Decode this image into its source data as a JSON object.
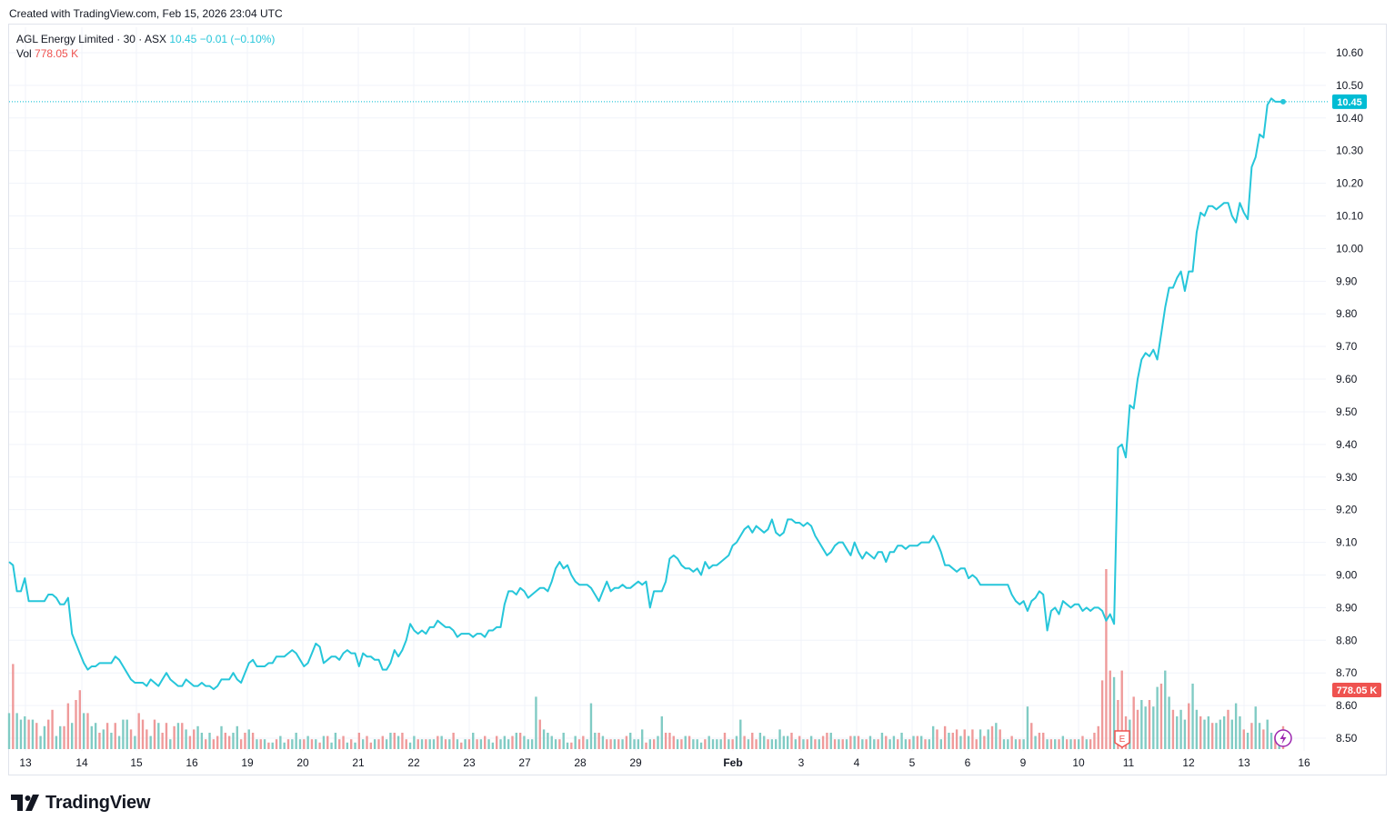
{
  "created_text": "Created with TradingView.com, Feb 15, 2026 23:04 UTC",
  "legend": {
    "symbol": "AGL Energy Limited · 30 · ASX",
    "last": "10.45",
    "change": "−0.01",
    "change_pct": "(−0.10%)",
    "vol_label": "Vol",
    "vol_value": "778.05 K"
  },
  "logo_text": "TradingView",
  "colors": {
    "line": "#26c6da",
    "vol_up": "#80cbc4",
    "vol_down": "#ef9a9a",
    "price_tag": "#00bcd4",
    "vol_tag": "#ef5350",
    "grid": "#f0f3fa"
  },
  "chart_data": {
    "type": "line",
    "x_tick_labels": [
      "13",
      "14",
      "15",
      "16",
      "19",
      "20",
      "21",
      "22",
      "23",
      "27",
      "28",
      "29",
      "Feb",
      "3",
      "4",
      "5",
      "6",
      "9",
      "10",
      "11",
      "12",
      "13",
      "16"
    ],
    "y_tick_labels": [
      "10.60",
      "10.50",
      "10.40",
      "10.30",
      "10.20",
      "10.10",
      "10.00",
      "9.90",
      "9.80",
      "9.70",
      "9.60",
      "9.50",
      "9.40",
      "9.30",
      "9.20",
      "9.10",
      "9.00",
      "8.90",
      "8.80",
      "8.70",
      "8.60",
      "8.50"
    ],
    "ylim": [
      8.47,
      10.65
    ],
    "last_price_label": "10.45",
    "last_volume_label": "778.05 K",
    "earnings_marker": "E",
    "series": [
      {
        "values": [
          9.04,
          9.03,
          8.95,
          8.95,
          8.99,
          8.92,
          8.92,
          8.92,
          8.92,
          8.92,
          8.94,
          8.94,
          8.93,
          8.91,
          8.91,
          8.93,
          8.82,
          8.79,
          8.76,
          8.73,
          8.71,
          8.72,
          8.72,
          8.73,
          8.73,
          8.73,
          8.73,
          8.75,
          8.74,
          8.72,
          8.7,
          8.68,
          8.67,
          8.67,
          8.67,
          8.66,
          8.68,
          8.67,
          8.66,
          8.68,
          8.7,
          8.68,
          8.67,
          8.66,
          8.66,
          8.68,
          8.67,
          8.66,
          8.66,
          8.67,
          8.66,
          8.66,
          8.65,
          8.66,
          8.68,
          8.68,
          8.68,
          8.7,
          8.68,
          8.67,
          8.7,
          8.73,
          8.74,
          8.72,
          8.72,
          8.72,
          8.73,
          8.73,
          8.75,
          8.75,
          8.75,
          8.76,
          8.77,
          8.76,
          8.74,
          8.72,
          8.73,
          8.76,
          8.79,
          8.78,
          8.73,
          8.74,
          8.75,
          8.75,
          8.74,
          8.76,
          8.77,
          8.76,
          8.76,
          8.72,
          8.76,
          8.75,
          8.75,
          8.74,
          8.74,
          8.71,
          8.71,
          8.73,
          8.77,
          8.75,
          8.77,
          8.8,
          8.85,
          8.83,
          8.82,
          8.83,
          8.82,
          8.84,
          8.84,
          8.86,
          8.85,
          8.84,
          8.84,
          8.83,
          8.81,
          8.82,
          8.82,
          8.82,
          8.81,
          8.82,
          8.82,
          8.81,
          8.83,
          8.83,
          8.84,
          8.84,
          8.91,
          8.95,
          8.95,
          8.94,
          8.96,
          8.95,
          8.93,
          8.94,
          8.95,
          8.96,
          8.96,
          8.95,
          8.98,
          9.02,
          9.04,
          9.02,
          9.03,
          9.0,
          8.98,
          8.97,
          8.97,
          8.97,
          8.96,
          8.94,
          8.92,
          8.95,
          8.98,
          8.95,
          8.96,
          8.96,
          8.97,
          8.96,
          8.96,
          8.97,
          8.98,
          8.97,
          8.98,
          8.9,
          8.95,
          8.95,
          8.95,
          8.98,
          9.05,
          9.06,
          9.05,
          9.03,
          9.02,
          9.02,
          9.01,
          9.02,
          9.0,
          9.04,
          9.02,
          9.03,
          9.03,
          9.04,
          9.05,
          9.06,
          9.09,
          9.1,
          9.12,
          9.14,
          9.15,
          9.13,
          9.15,
          9.14,
          9.13,
          9.14,
          9.17,
          9.13,
          9.12,
          9.13,
          9.17,
          9.17,
          9.16,
          9.16,
          9.15,
          9.16,
          9.15,
          9.12,
          9.1,
          9.08,
          9.06,
          9.07,
          9.09,
          9.1,
          9.1,
          9.08,
          9.06,
          9.1,
          9.07,
          9.05,
          9.07,
          9.06,
          9.05,
          9.07,
          9.07,
          9.04,
          9.07,
          9.07,
          9.09,
          9.09,
          9.08,
          9.09,
          9.09,
          9.09,
          9.1,
          9.1,
          9.1,
          9.12,
          9.1,
          9.07,
          9.03,
          9.03,
          9.02,
          9.01,
          9.02,
          9.02,
          8.99,
          9.0,
          8.99,
          8.97,
          8.97,
          8.97,
          8.97,
          8.97,
          8.97,
          8.97,
          8.97,
          8.94,
          8.92,
          8.91,
          8.92,
          8.89,
          8.92,
          8.93,
          8.95,
          8.94,
          8.83,
          8.89,
          8.9,
          8.88,
          8.92,
          8.91,
          8.9,
          8.91,
          8.91,
          8.89,
          8.9,
          8.89,
          8.9,
          8.9,
          8.89,
          8.86,
          8.88,
          8.85,
          9.39,
          9.4,
          9.36,
          9.52,
          9.51,
          9.6,
          9.66,
          9.68,
          9.67,
          9.69,
          9.66,
          9.74,
          9.82,
          9.88,
          9.88,
          9.91,
          9.93,
          9.87,
          9.93,
          9.93,
          10.05,
          10.11,
          10.1,
          10.13,
          10.13,
          10.12,
          10.13,
          10.14,
          10.14,
          10.1,
          10.08,
          10.14,
          10.11,
          10.09,
          10.25,
          10.28,
          10.35,
          10.34,
          10.44,
          10.46,
          10.45,
          10.45,
          10.45
        ]
      },
      {
        "name": "Vol",
        "values": [
          0.11,
          0.26,
          0.11,
          0.09,
          0.1,
          0.09,
          0.09,
          0.08,
          0.04,
          0.07,
          0.09,
          0.12,
          0.04,
          0.07,
          0.07,
          0.14,
          0.08,
          0.15,
          0.18,
          0.11,
          0.11,
          0.07,
          0.08,
          0.05,
          0.06,
          0.08,
          0.05,
          0.08,
          0.04,
          0.09,
          0.09,
          0.06,
          0.04,
          0.11,
          0.09,
          0.06,
          0.04,
          0.09,
          0.08,
          0.05,
          0.08,
          0.03,
          0.07,
          0.08,
          0.08,
          0.06,
          0.04,
          0.06,
          0.07,
          0.05,
          0.03,
          0.05,
          0.03,
          0.04,
          0.07,
          0.05,
          0.04,
          0.05,
          0.07,
          0.03,
          0.05,
          0.06,
          0.05,
          0.03,
          0.03,
          0.03,
          0.02,
          0.02,
          0.03,
          0.04,
          0.02,
          0.03,
          0.03,
          0.05,
          0.03,
          0.03,
          0.04,
          0.03,
          0.03,
          0.02,
          0.04,
          0.04,
          0.02,
          0.05,
          0.03,
          0.04,
          0.02,
          0.03,
          0.02,
          0.05,
          0.03,
          0.04,
          0.02,
          0.03,
          0.03,
          0.04,
          0.03,
          0.05,
          0.05,
          0.04,
          0.05,
          0.03,
          0.02,
          0.04,
          0.03,
          0.03,
          0.03,
          0.03,
          0.03,
          0.04,
          0.04,
          0.03,
          0.03,
          0.05,
          0.03,
          0.02,
          0.03,
          0.03,
          0.05,
          0.03,
          0.03,
          0.04,
          0.03,
          0.02,
          0.04,
          0.03,
          0.04,
          0.03,
          0.04,
          0.05,
          0.05,
          0.04,
          0.03,
          0.03,
          0.16,
          0.09,
          0.06,
          0.05,
          0.04,
          0.03,
          0.03,
          0.05,
          0.02,
          0.02,
          0.04,
          0.03,
          0.04,
          0.03,
          0.14,
          0.05,
          0.05,
          0.04,
          0.03,
          0.03,
          0.03,
          0.03,
          0.03,
          0.04,
          0.05,
          0.03,
          0.03,
          0.06,
          0.02,
          0.03,
          0.03,
          0.04,
          0.1,
          0.05,
          0.05,
          0.04,
          0.03,
          0.03,
          0.04,
          0.04,
          0.03,
          0.03,
          0.02,
          0.03,
          0.04,
          0.03,
          0.03,
          0.03,
          0.05,
          0.03,
          0.03,
          0.04,
          0.09,
          0.04,
          0.03,
          0.05,
          0.03,
          0.05,
          0.04,
          0.03,
          0.03,
          0.03,
          0.06,
          0.04,
          0.04,
          0.05,
          0.03,
          0.04,
          0.03,
          0.03,
          0.04,
          0.03,
          0.03,
          0.04,
          0.05,
          0.05,
          0.03,
          0.03,
          0.03,
          0.03,
          0.04,
          0.04,
          0.04,
          0.03,
          0.03,
          0.04,
          0.03,
          0.03,
          0.05,
          0.04,
          0.03,
          0.04,
          0.03,
          0.05,
          0.03,
          0.03,
          0.04,
          0.04,
          0.04,
          0.03,
          0.03,
          0.07,
          0.06,
          0.03,
          0.07,
          0.05,
          0.05,
          0.06,
          0.04,
          0.06,
          0.04,
          0.06,
          0.03,
          0.06,
          0.04,
          0.06,
          0.07,
          0.08,
          0.06,
          0.03,
          0.03,
          0.04,
          0.03,
          0.03,
          0.03,
          0.13,
          0.08,
          0.04,
          0.05,
          0.05,
          0.03,
          0.03,
          0.03,
          0.03,
          0.04,
          0.03,
          0.03,
          0.03,
          0.03,
          0.04,
          0.03,
          0.03,
          0.05,
          0.07,
          0.21,
          0.55,
          0.24,
          0.22,
          0.15,
          0.24,
          0.1,
          0.09,
          0.16,
          0.12,
          0.15,
          0.13,
          0.15,
          0.13,
          0.19,
          0.2,
          0.24,
          0.16,
          0.12,
          0.1,
          0.12,
          0.09,
          0.14,
          0.2,
          0.12,
          0.1,
          0.09,
          0.1,
          0.08,
          0.08,
          0.09,
          0.1,
          0.12,
          0.09,
          0.14,
          0.1,
          0.06,
          0.05,
          0.08,
          0.13,
          0.08,
          0.06,
          0.09,
          0.05,
          0.04,
          0.05,
          0.07,
          0.11,
          0.17
        ],
        "directions": [
          1,
          0,
          1,
          1,
          1,
          0,
          1,
          0,
          1,
          1,
          0,
          0,
          1,
          1,
          0,
          0,
          1,
          0,
          0,
          1,
          0,
          1,
          1,
          0,
          1,
          0,
          1,
          0,
          1,
          1,
          1,
          0,
          1,
          0,
          0,
          0,
          1,
          0,
          1,
          0,
          0,
          1,
          0,
          1,
          0,
          1,
          0,
          0,
          1,
          1,
          0,
          1,
          0,
          0,
          1,
          0,
          0,
          1,
          1,
          0,
          0,
          1,
          0,
          1,
          0,
          1,
          0,
          1,
          0,
          1,
          1,
          0,
          1,
          1,
          1,
          0,
          1,
          0,
          1,
          0,
          1,
          0,
          1,
          1,
          0,
          0,
          1,
          0,
          1,
          0,
          1,
          0,
          0,
          1,
          0,
          0,
          1,
          1,
          0,
          1,
          0,
          0,
          1,
          1,
          0,
          1,
          0,
          1,
          1,
          0,
          1,
          0,
          1,
          0,
          1,
          0,
          1,
          0,
          1,
          0,
          1,
          0,
          1,
          1,
          0,
          1,
          1,
          1,
          0,
          1,
          0,
          1,
          1,
          1,
          1,
          0,
          1,
          1,
          1,
          1,
          0,
          1,
          1,
          0,
          1,
          0,
          0,
          1,
          1,
          1,
          0,
          1,
          0,
          0,
          1,
          0,
          1,
          0,
          1,
          1,
          1,
          1,
          0,
          1,
          0,
          1,
          1,
          0,
          0,
          0,
          1,
          0,
          1,
          0,
          1,
          1,
          1,
          0,
          1,
          1,
          1,
          1,
          0,
          1,
          0,
          1,
          1,
          0,
          1,
          0,
          0,
          1,
          1,
          0,
          1,
          1,
          1,
          1,
          1,
          0,
          1,
          0,
          1,
          0,
          1,
          0,
          1,
          0,
          0,
          1,
          0,
          1,
          0,
          1,
          0,
          1,
          0,
          1,
          0,
          1,
          1,
          0,
          1,
          0,
          1,
          1,
          0,
          1,
          1,
          0,
          1,
          0,
          1,
          0,
          1,
          1,
          0,
          1,
          0,
          1,
          0,
          0,
          1,
          0,
          1,
          0,
          0,
          1,
          0,
          1,
          0,
          1,
          0,
          1,
          1,
          0,
          1,
          0,
          1,
          1,
          0,
          1,
          0,
          0,
          1,
          0,
          1,
          0,
          1,
          0,
          1,
          0,
          1,
          0,
          1,
          0,
          0,
          0,
          0,
          0,
          0,
          1,
          0,
          0,
          0,
          1,
          0,
          0,
          1,
          1,
          0,
          1,
          1,
          0,
          1,
          1,
          0,
          1,
          1,
          1,
          0,
          1,
          1,
          0,
          1,
          1,
          0,
          1,
          1,
          1,
          0,
          1,
          1,
          1,
          0,
          1,
          0,
          1,
          1,
          0,
          1,
          1,
          0,
          1,
          0,
          1,
          0,
          0
        ]
      }
    ]
  }
}
